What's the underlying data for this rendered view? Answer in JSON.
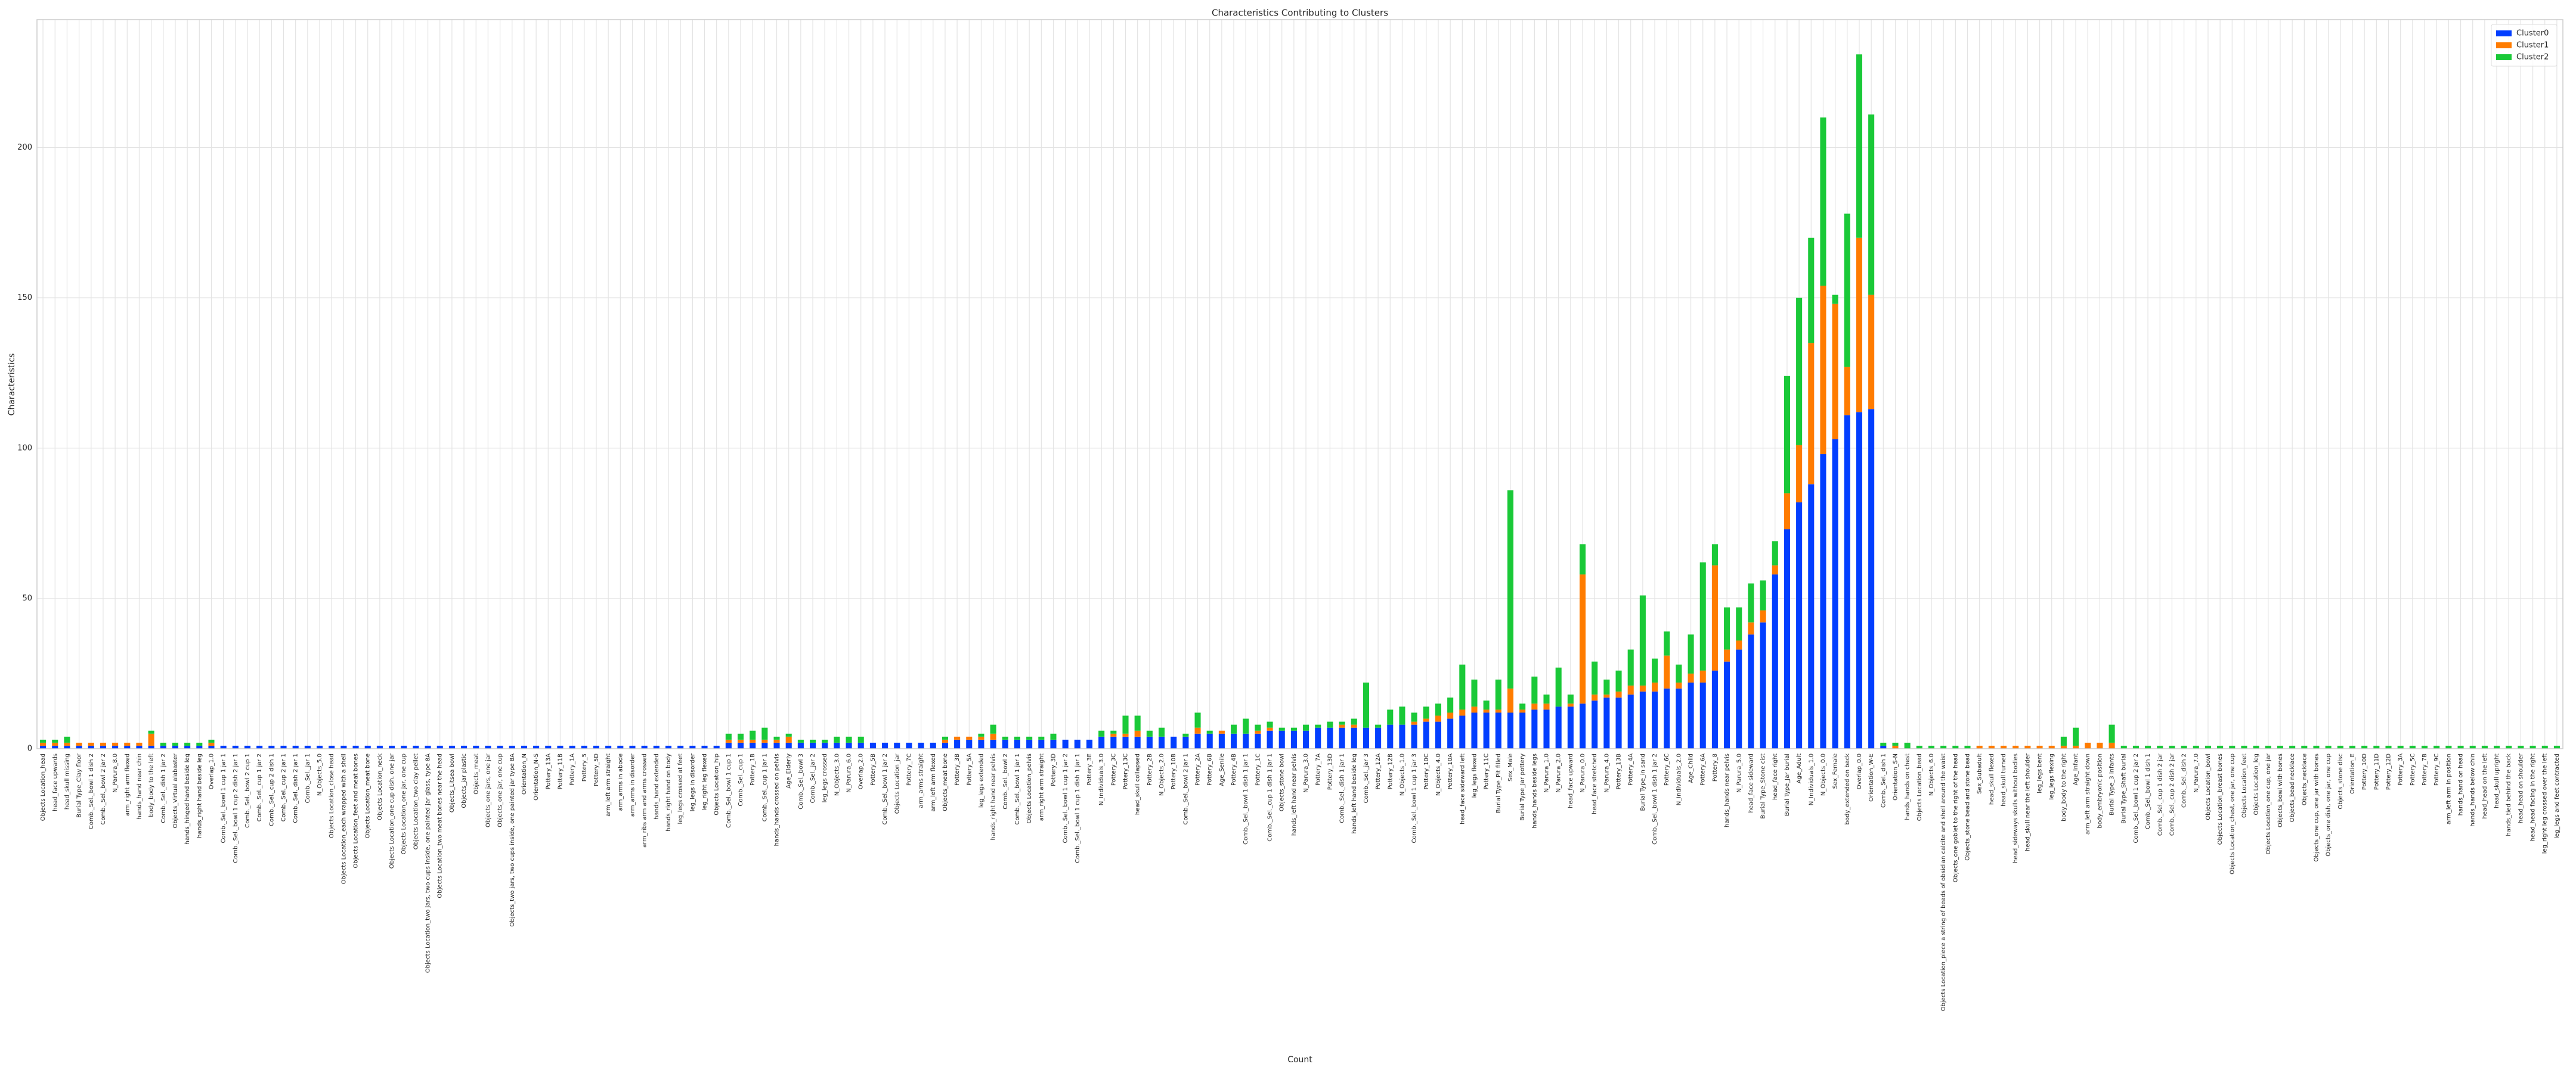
{
  "chart_data": {
    "type": "bar",
    "stacked": true,
    "title": "Characteristics Contributing to Clusters",
    "xlabel": "Count",
    "ylabel": "Characteristics",
    "grid": true,
    "legend": "upper right",
    "ylim": [
      0,
      242.55
    ],
    "yticks": [
      0,
      50,
      100,
      150,
      200
    ],
    "categories": [
      "Objects Location_head",
      "head_face upwards",
      "head_skull missing",
      "Burial Type_Clay floor",
      "Comb._Sel._bowl 1 dish 2",
      "Comb._Sel._bowl 2 jar 2",
      "N_Parura_8.0",
      "arm_right arm flexed",
      "hands_hand near chin",
      "body_body to the left",
      "Comb._Sel._dish 1 jar 2",
      "Objects_Virtual alabaster",
      "hands_hinged hand beside leg",
      "hands_right hand beside leg",
      "Overlap_1.0",
      "Comb._Sel._bowl 1 cup 1 jar 1",
      "Comb._Sel._bowl 1 cup 2 dish 2 jar 1",
      "Comb._Sel._bowl 2 cup 1",
      "Comb._Sel._cup 1 jar 2",
      "Comb._Sel._cup 2 dish 1",
      "Comb._Sel._cup 2 jar 1",
      "Comb._Sel._dish 2 jar 1",
      "Comb._Sel._jar 1",
      "N_Objects_5.0",
      "Objects Location_close head",
      "Objects Location_each wrapped with a shell",
      "Objects Location_feet and meat bones",
      "Objects Location_meat bone",
      "Objects Location_neck",
      "Objects Location_one cup dish, one jar",
      "Objects Location_one jar, one cup",
      "Objects Location_two clay pellet",
      "Objects Location_two jars, two cups inside, one painted jar glass, type 8A",
      "Objects Location_two meat bones near the head",
      "Objects_Litsea bowl",
      "Objects_jar plastic",
      "Objects_meat",
      "Objects_one jars, one jar",
      "Objects_one jar, one cup",
      "Objects_two jars, two cups inside, one painted jar type 8A",
      "Orientation_N",
      "Orientation_N-S",
      "Pottery_13A",
      "Pottery_11B",
      "Pottery_1A",
      "Pottery_5",
      "Pottery_5D",
      "arm_left arm straight",
      "arm_arms in abode",
      "arm_arms in disorder",
      "arm_ribs arm and arms crossed",
      "hands_hand extended",
      "hands_right hand on body",
      "leg_legs crossed at feet",
      "leg_legs in disorder",
      "leg_right leg flexed",
      "Objects Location_hip",
      "Comb._Sel._bowl 1 cup 1",
      "Comb._Sel._cup 1",
      "Pottery_1B",
      "Comb._Sel._cup 1 jar 1",
      "hands_hands crossed on pelvis",
      "Age_Elderly",
      "Comb._Sel._bowl 3",
      "Comb._Sel._jar 2",
      "leg_legs crossed",
      "N_Objects_3.0",
      "N_Parura_6.0",
      "Overlap_2.0",
      "Pottery_5B",
      "Comb._Sel._bowl 1 jar 2",
      "Objects Location_jar",
      "Pottery_7C",
      "arm_arms straight",
      "arm_left arm flexed",
      "Objects_meat bone",
      "Pottery_3B",
      "Pottery_5A",
      "leg_legs extended",
      "hands_right hand near pelvis",
      "Comb._Sel._bowl 2",
      "Comb._Sel._bowl 1 jar 1",
      "Objects Location_pelvis",
      "arm_right arm straight",
      "Pottery_3D",
      "Comb._Sel._bowl 1 cup 1 jar 2",
      "Comb._Sel._bowl 1 cup 1 dish 1 jar 1",
      "Pottery_3E",
      "N_Individuals_3.0",
      "Pottery_3C",
      "Pottery_13C",
      "head_skull collapsed",
      "Pottery_2B",
      "N_Objects_2.0",
      "Pottery_10B",
      "Comb._Sel._bowl 2 jar 1",
      "Pottery_2A",
      "Pottery_6B",
      "Age_Senile",
      "Pottery_4B",
      "Comb._Sel._bowl 1 dish 1 jar 1",
      "Pottery_1C",
      "Comb._Sel._cup 1 dish 1 jar 1",
      "Objects_stone bowl",
      "hands_left hand near pelvis",
      "N_Parura_3.0",
      "Pottery_7A",
      "Pottery_13D",
      "Comb._Sel._dish 1 jar 1",
      "hands_left hand beside leg",
      "Comb._Sel._jar 3",
      "Pottery_12A",
      "Pottery_12B",
      "N_Objects_1.0",
      "Comb._Sel._bowl 1 cup 1 jar 3",
      "Pottery_10C",
      "N_Objects_4.0",
      "Pottery_10A",
      "head_face sideward left",
      "leg_legs flexed",
      "Pottery_11C",
      "Burial Type_Pit filled",
      "Sex_Male",
      "Burial Type_Jar pottery",
      "hands_hands beside legs",
      "N_Parura_1.0",
      "N_Parura_2.0",
      "head_face upward",
      "N_Parura_0.0",
      "head_face stretched",
      "N_Parura_4.0",
      "Pottery_13B",
      "Pottery_4A",
      "Burial Type_in sand",
      "Comb._Sel._bowl 1 dish 1 jar 2",
      "Pottery_6C",
      "N_Individuals_2.0",
      "Age_Child",
      "Pottery_6A",
      "Pottery_8",
      "hands_hands near pelvis",
      "N_Parura_5.0",
      "head_face sideward",
      "Burial Type_Stone cist",
      "head_face right",
      "Burial Type_Jar burial",
      "Age_Adult",
      "N_Individuals_1.0",
      "N_Objects_0.0",
      "Sex_Female",
      "body_extended on back",
      "Overlap_0.0",
      "Orientation_W-E",
      "Comb._Sel._dish 1",
      "Orientation_S-N",
      "hands_hands on chest",
      "Objects Location_bead",
      "N_Objects_6.0",
      "Objects Location_piece a string of beads of obsidian calcite and shell around the waist",
      "Objects_one goblet to the right of the head",
      "Objects_stone bead and stone bead",
      "Sex_Subadult",
      "head_skull flexed",
      "head_skull turned",
      "head_sideways skulls without bodies",
      "head_skull near the left shoulder",
      "leg_legs bent",
      "leg_legs flexing",
      "body_body to the right",
      "Age_Infant",
      "arm_left arm straight down",
      "body_embryonic position",
      "Burial Type_3 infants",
      "Burial Type_Shaft burial",
      "Comb._Sel._bowl 1 cup 2 jar 2",
      "Comb._Sel._bowl 1 dish 1",
      "Comb._Sel._cup 1 dish 2 jar",
      "Comb._Sel._cup 2 dish 2 jar",
      "Comb._Sel._dish 2",
      "N_Parura_7.0",
      "Objects Location_bowl",
      "Objects Location_breast bones",
      "Objects Location_chest, one jar, one cup",
      "Objects Location_feet",
      "Objects Location_leg",
      "Objects Location_one cup, one jar",
      "Objects_bowl with bones",
      "Objects_bead necklace",
      "Objects_necklace",
      "Objects_one cup, one jar with bones",
      "Objects_one dish, one jar, one cup",
      "Objects_stone disc",
      "Orientation_E",
      "Pottery_10D",
      "Pottery_11D",
      "Pottery_12D",
      "Pottery_3A",
      "Pottery_5C",
      "Pottery_7B",
      "Pottery_9C",
      "arm_left arm in position",
      "hands_hand on head",
      "hands_hands below chin",
      "head_head on the left",
      "head_skull upright",
      "hands_tied behind the back",
      "head_head on shoulder",
      "head_head facing in the right",
      "leg_right leg crossed over the left",
      "leg_legs and feet contracted"
    ],
    "series": [
      {
        "name": "Cluster0",
        "color": "#023eff",
        "values": [
          1,
          1,
          1,
          1,
          1,
          1,
          1,
          1,
          1,
          1,
          1,
          1,
          1,
          1,
          1,
          1,
          1,
          1,
          1,
          1,
          1,
          1,
          1,
          1,
          1,
          1,
          1,
          1,
          1,
          1,
          1,
          1,
          1,
          1,
          1,
          1,
          1,
          1,
          1,
          1,
          1,
          1,
          1,
          1,
          1,
          1,
          1,
          1,
          1,
          1,
          1,
          1,
          1,
          1,
          1,
          1,
          1,
          2,
          2,
          2,
          2,
          2,
          2,
          2,
          2,
          2,
          2,
          2,
          2,
          2,
          2,
          2,
          2,
          2,
          2,
          2,
          3,
          3,
          3,
          3,
          3,
          3,
          3,
          3,
          3,
          3,
          3,
          3,
          4,
          4,
          4,
          4,
          4,
          4,
          4,
          4,
          5,
          5,
          5,
          5,
          5,
          5,
          6,
          6,
          6,
          6,
          7,
          7,
          7,
          7,
          7,
          7,
          8,
          8,
          8,
          9,
          9,
          10,
          11,
          12,
          12,
          12,
          12,
          12,
          13,
          13,
          14,
          14,
          15,
          16,
          17,
          17,
          18,
          19,
          19,
          20,
          20,
          22,
          22,
          26,
          29,
          33,
          38,
          42,
          58,
          73,
          82,
          88,
          98,
          103,
          111,
          112,
          113,
          1,
          0,
          0,
          0,
          0,
          0,
          0,
          0,
          0,
          0,
          0,
          0,
          0,
          0,
          0,
          0,
          0,
          0,
          0,
          0,
          0,
          0,
          0,
          0,
          0,
          0,
          0,
          0,
          0,
          0,
          0,
          0,
          0,
          0,
          0,
          0,
          0,
          0,
          0,
          0,
          0,
          0,
          0,
          0,
          0,
          0,
          0,
          0,
          0,
          0,
          0,
          0,
          0,
          0,
          0,
          0,
          0
        ]
      },
      {
        "name": "Cluster1",
        "color": "#ff7c00",
        "values": [
          1,
          1,
          1,
          1,
          1,
          1,
          1,
          1,
          1,
          4,
          0,
          0,
          0,
          0,
          1,
          0,
          0,
          0,
          0,
          0,
          0,
          0,
          0,
          0,
          0,
          0,
          0,
          0,
          0,
          0,
          0,
          0,
          0,
          0,
          0,
          0,
          0,
          0,
          0,
          0,
          0,
          0,
          0,
          0,
          0,
          0,
          0,
          0,
          0,
          0,
          0,
          0,
          0,
          0,
          0,
          0,
          0,
          1,
          1,
          1,
          1,
          1,
          2,
          0,
          0,
          0,
          0,
          0,
          0,
          0,
          0,
          0,
          0,
          0,
          0,
          1,
          1,
          1,
          1,
          2,
          0,
          0,
          0,
          0,
          0,
          0,
          0,
          0,
          0,
          1,
          1,
          2,
          0,
          0,
          0,
          0,
          2,
          0,
          1,
          0,
          0,
          1,
          1,
          0,
          0,
          0,
          0,
          0,
          1,
          1,
          0,
          0,
          0,
          0,
          1,
          1,
          2,
          2,
          2,
          2,
          1,
          1,
          8,
          1,
          2,
          2,
          0,
          1,
          43,
          2,
          1,
          2,
          3,
          2,
          3,
          11,
          2,
          3,
          4,
          35,
          4,
          3,
          4,
          4,
          3,
          12,
          19,
          47,
          56,
          45,
          16,
          58,
          38,
          0,
          1,
          0,
          0,
          0,
          0,
          0,
          0,
          1,
          1,
          1,
          1,
          1,
          1,
          1,
          1,
          1,
          2,
          2,
          2,
          0,
          0,
          0,
          0,
          0,
          0,
          0,
          0,
          0,
          0,
          0,
          0,
          0,
          0,
          0,
          0,
          0,
          0,
          0,
          0,
          0,
          0,
          0,
          0,
          0,
          0,
          0,
          0,
          0,
          0,
          0,
          0,
          0,
          0,
          0,
          0,
          0
        ]
      },
      {
        "name": "Cluster2",
        "color": "#1ac938",
        "values": [
          1,
          1,
          2,
          0,
          0,
          0,
          0,
          0,
          0,
          1,
          1,
          1,
          1,
          1,
          1,
          0,
          0,
          0,
          0,
          0,
          0,
          0,
          0,
          0,
          0,
          0,
          0,
          0,
          0,
          0,
          0,
          0,
          0,
          0,
          0,
          0,
          0,
          0,
          0,
          0,
          0,
          0,
          0,
          0,
          0,
          0,
          0,
          0,
          0,
          0,
          0,
          0,
          0,
          0,
          0,
          0,
          0,
          2,
          2,
          3,
          4,
          1,
          1,
          1,
          1,
          1,
          2,
          2,
          2,
          0,
          0,
          0,
          0,
          0,
          0,
          1,
          0,
          0,
          1,
          3,
          1,
          1,
          1,
          1,
          2,
          0,
          0,
          0,
          2,
          1,
          6,
          5,
          2,
          3,
          0,
          1,
          5,
          1,
          0,
          3,
          5,
          2,
          2,
          1,
          1,
          2,
          1,
          2,
          1,
          2,
          15,
          1,
          5,
          6,
          3,
          4,
          4,
          5,
          15,
          9,
          3,
          10,
          66,
          2,
          9,
          3,
          13,
          3,
          10,
          11,
          5,
          7,
          12,
          30,
          8,
          8,
          6,
          13,
          36,
          7,
          14,
          11,
          13,
          10,
          8,
          39,
          49,
          35,
          56,
          3,
          51,
          61,
          60,
          1,
          1,
          2,
          1,
          1,
          1,
          1,
          1,
          0,
          0,
          0,
          0,
          0,
          0,
          0,
          3,
          6,
          0,
          0,
          6,
          1,
          1,
          1,
          1,
          1,
          1,
          1,
          1,
          1,
          1,
          1,
          1,
          1,
          1,
          1,
          1,
          1,
          1,
          1,
          1,
          1,
          1,
          1,
          1,
          1,
          1,
          1,
          1,
          1,
          1,
          1,
          1,
          1,
          1,
          1,
          1,
          1
        ]
      }
    ]
  }
}
